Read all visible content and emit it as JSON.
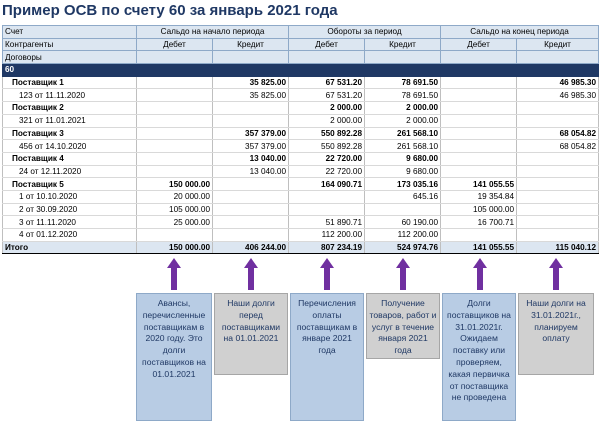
{
  "title": "Пример ОСВ по счету 60 за январь 2021 года",
  "header": {
    "account": "Счет",
    "contractors": "Контрагенты",
    "contracts": "Договоры",
    "opening": "Сальдо на начало периода",
    "turnover": "Обороты за период",
    "closing": "Сальдо на конец периода",
    "debit": "Дебет",
    "credit": "Кредит"
  },
  "section": "60",
  "rows": [
    {
      "name": "Поставщик 1",
      "bold": true,
      "indent": 0,
      "v": [
        "",
        "35 825.00",
        "67 531.20",
        "78 691.50",
        "",
        "46 985.30"
      ]
    },
    {
      "name": "123 от 11.11.2020",
      "bold": false,
      "indent": 1,
      "v": [
        "",
        "35 825.00",
        "67 531.20",
        "78 691.50",
        "",
        "46 985.30"
      ]
    },
    {
      "name": "Поставщик 2",
      "bold": true,
      "indent": 0,
      "v": [
        "",
        "",
        "2 000.00",
        "2 000.00",
        "",
        ""
      ]
    },
    {
      "name": "321 от 11.01.2021",
      "bold": false,
      "indent": 1,
      "v": [
        "",
        "",
        "2 000.00",
        "2 000.00",
        "",
        ""
      ]
    },
    {
      "name": "Поставщик 3",
      "bold": true,
      "indent": 0,
      "v": [
        "",
        "357 379.00",
        "550 892.28",
        "261 568.10",
        "",
        "68 054.82"
      ]
    },
    {
      "name": "456 от 14.10.2020",
      "bold": false,
      "indent": 1,
      "v": [
        "",
        "357 379.00",
        "550 892.28",
        "261 568.10",
        "",
        "68 054.82"
      ]
    },
    {
      "name": "Поставщик 4",
      "bold": true,
      "indent": 0,
      "v": [
        "",
        "13 040.00",
        "22 720.00",
        "9 680.00",
        "",
        ""
      ]
    },
    {
      "name": "24 от 12.11.2020",
      "bold": false,
      "indent": 1,
      "v": [
        "",
        "13 040.00",
        "22 720.00",
        "9 680.00",
        "",
        ""
      ]
    },
    {
      "name": "Поставщик 5",
      "bold": true,
      "indent": 0,
      "v": [
        "150 000.00",
        "",
        "164 090.71",
        "173 035.16",
        "141 055.55",
        ""
      ]
    },
    {
      "name": "1 от 10.10.2020",
      "bold": false,
      "indent": 1,
      "v": [
        "20 000.00",
        "",
        "",
        "645.16",
        "19 354.84",
        ""
      ]
    },
    {
      "name": "2 от 30.09.2020",
      "bold": false,
      "indent": 1,
      "v": [
        "105 000.00",
        "",
        "",
        "",
        "105 000.00",
        ""
      ]
    },
    {
      "name": "3 от 11.11.2020",
      "bold": false,
      "indent": 1,
      "v": [
        "25 000.00",
        "",
        "51 890.71",
        "60 190.00",
        "16 700.71",
        ""
      ]
    },
    {
      "name": "4 от 01.12.2020",
      "bold": false,
      "indent": 1,
      "v": [
        "",
        "",
        "112 200.00",
        "112 200.00",
        "",
        ""
      ]
    }
  ],
  "total": {
    "name": "Итого",
    "v": [
      "150 000.00",
      "406 244.00",
      "807 234.19",
      "524 974.76",
      "141 055.55",
      "115 040.12"
    ]
  },
  "notes": [
    "Авансы, перечисленные поставщикам в 2020 году. Это долги поставщиков на 01.01.2021",
    "Наши долги перед поставщиками на 01.01.2021",
    "Перечисления оплаты поставщикам в январе 2021 года",
    "Получение товаров, работ и услуг в течение января 2021 года",
    "Долги поставщиков на 31.01.2021г. Ожидаем поставку или проверяем, какая первичка от поставщика не проведена",
    "Наши долги на 31.01.2021г., планируем оплату"
  ],
  "colors": {
    "header_bg": "#dce6f1",
    "section_bg": "#1f3864",
    "note_blue": "#b8cce4",
    "note_gray": "#d0d0d0",
    "arrow": "#7030a0"
  }
}
